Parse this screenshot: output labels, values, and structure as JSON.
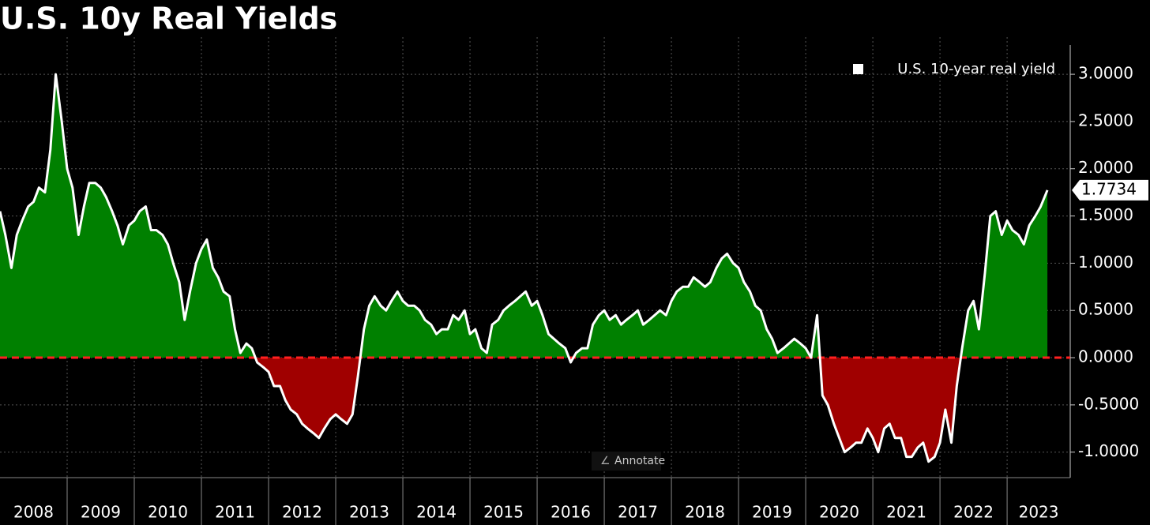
{
  "chart_data": {
    "type": "area-line",
    "title": "U.S. 10y Real Yields",
    "legend": "top-right",
    "grid": true,
    "series": [
      {
        "name": "U.S. 10-year real yield",
        "color": "#ffffff",
        "positive_color": "#008000",
        "negative_color": "#a00000",
        "x": [
          2008,
          2008.08,
          2008.17,
          2008.25,
          2008.33,
          2008.42,
          2008.5,
          2008.58,
          2008.67,
          2008.75,
          2008.83,
          2008.92,
          2009,
          2009.08,
          2009.17,
          2009.25,
          2009.33,
          2009.42,
          2009.5,
          2009.58,
          2009.67,
          2009.75,
          2009.83,
          2009.92,
          2010,
          2010.08,
          2010.17,
          2010.25,
          2010.33,
          2010.42,
          2010.5,
          2010.58,
          2010.67,
          2010.75,
          2010.83,
          2010.92,
          2011,
          2011.08,
          2011.17,
          2011.25,
          2011.33,
          2011.42,
          2011.5,
          2011.58,
          2011.67,
          2011.75,
          2011.83,
          2011.92,
          2012,
          2012.08,
          2012.17,
          2012.25,
          2012.33,
          2012.42,
          2012.5,
          2012.58,
          2012.67,
          2012.75,
          2012.83,
          2012.92,
          2013,
          2013.08,
          2013.17,
          2013.25,
          2013.33,
          2013.42,
          2013.5,
          2013.58,
          2013.67,
          2013.75,
          2013.83,
          2013.92,
          2014,
          2014.08,
          2014.17,
          2014.25,
          2014.33,
          2014.42,
          2014.5,
          2014.58,
          2014.67,
          2014.75,
          2014.83,
          2014.92,
          2015,
          2015.08,
          2015.17,
          2015.25,
          2015.33,
          2015.42,
          2015.5,
          2015.58,
          2015.67,
          2015.75,
          2015.83,
          2015.92,
          2016,
          2016.08,
          2016.17,
          2016.25,
          2016.33,
          2016.42,
          2016.5,
          2016.58,
          2016.67,
          2016.75,
          2016.83,
          2016.92,
          2017,
          2017.08,
          2017.17,
          2017.25,
          2017.33,
          2017.42,
          2017.5,
          2017.58,
          2017.67,
          2017.75,
          2017.83,
          2017.92,
          2018,
          2018.08,
          2018.17,
          2018.25,
          2018.33,
          2018.42,
          2018.5,
          2018.58,
          2018.67,
          2018.75,
          2018.83,
          2018.92,
          2019,
          2019.08,
          2019.17,
          2019.25,
          2019.33,
          2019.42,
          2019.5,
          2019.58,
          2019.67,
          2019.75,
          2019.83,
          2019.92,
          2020,
          2020.08,
          2020.17,
          2020.25,
          2020.33,
          2020.42,
          2020.5,
          2020.58,
          2020.67,
          2020.75,
          2020.83,
          2020.92,
          2021,
          2021.08,
          2021.17,
          2021.25,
          2021.33,
          2021.42,
          2021.5,
          2021.58,
          2021.67,
          2021.75,
          2021.83,
          2021.92,
          2022,
          2022.08,
          2022.17,
          2022.25,
          2022.33,
          2022.42,
          2022.5,
          2022.58,
          2022.67,
          2022.75,
          2022.83,
          2022.92,
          2023,
          2023.08,
          2023.17,
          2023.25,
          2023.33,
          2023.42,
          2023.5,
          2023.6
        ],
        "values": [
          1.55,
          1.3,
          0.95,
          1.3,
          1.45,
          1.6,
          1.65,
          1.8,
          1.75,
          2.2,
          3.0,
          2.5,
          2.0,
          1.8,
          1.3,
          1.6,
          1.85,
          1.85,
          1.8,
          1.7,
          1.55,
          1.4,
          1.2,
          1.4,
          1.45,
          1.55,
          1.6,
          1.35,
          1.35,
          1.3,
          1.2,
          1.0,
          0.8,
          0.4,
          0.7,
          1.0,
          1.15,
          1.25,
          0.95,
          0.85,
          0.7,
          0.65,
          0.3,
          0.05,
          0.15,
          0.1,
          -0.05,
          -0.1,
          -0.15,
          -0.3,
          -0.3,
          -0.45,
          -0.55,
          -0.6,
          -0.7,
          -0.75,
          -0.8,
          -0.85,
          -0.75,
          -0.65,
          -0.6,
          -0.65,
          -0.7,
          -0.6,
          -0.2,
          0.3,
          0.55,
          0.65,
          0.55,
          0.5,
          0.6,
          0.7,
          0.6,
          0.55,
          0.55,
          0.5,
          0.4,
          0.35,
          0.25,
          0.3,
          0.3,
          0.45,
          0.4,
          0.5,
          0.25,
          0.3,
          0.1,
          0.05,
          0.35,
          0.4,
          0.5,
          0.55,
          0.6,
          0.65,
          0.7,
          0.55,
          0.6,
          0.45,
          0.25,
          0.2,
          0.15,
          0.1,
          -0.05,
          0.05,
          0.1,
          0.1,
          0.35,
          0.45,
          0.5,
          0.4,
          0.45,
          0.35,
          0.4,
          0.45,
          0.5,
          0.35,
          0.4,
          0.45,
          0.5,
          0.45,
          0.6,
          0.7,
          0.75,
          0.75,
          0.85,
          0.8,
          0.75,
          0.8,
          0.95,
          1.05,
          1.1,
          1.0,
          0.95,
          0.8,
          0.7,
          0.55,
          0.5,
          0.3,
          0.2,
          0.05,
          0.1,
          0.15,
          0.2,
          0.15,
          0.1,
          0.0,
          0.45,
          -0.4,
          -0.5,
          -0.7,
          -0.85,
          -1.0,
          -0.95,
          -0.9,
          -0.9,
          -0.75,
          -0.85,
          -1.0,
          -0.75,
          -0.7,
          -0.85,
          -0.85,
          -1.05,
          -1.05,
          -0.95,
          -0.9,
          -1.1,
          -1.05,
          -0.9,
          -0.55,
          -0.9,
          -0.3,
          0.1,
          0.5,
          0.6,
          0.3,
          0.9,
          1.5,
          1.55,
          1.3,
          1.45,
          1.35,
          1.3,
          1.2,
          1.4,
          1.5,
          1.6,
          1.7734
        ]
      }
    ],
    "reference_line": {
      "value": 0,
      "color": "#ff2020"
    },
    "xlim": [
      2008,
      2023.94
    ],
    "xticks": [
      2008,
      2009,
      2010,
      2011,
      2012,
      2013,
      2014,
      2015,
      2016,
      2017,
      2018,
      2019,
      2020,
      2021,
      2022,
      2023
    ],
    "ylim": [
      -1.27,
      3.31
    ],
    "yticks": [
      {
        "value": 3,
        "label": "3.0000"
      },
      {
        "value": 2.5,
        "label": "2.5000"
      },
      {
        "value": 2,
        "label": "2.0000"
      },
      {
        "value": 1.5,
        "label": "1.5000"
      },
      {
        "value": 1,
        "label": "1.0000"
      },
      {
        "value": 0.5,
        "label": "0.5000"
      },
      {
        "value": 0,
        "label": "0.0000"
      },
      {
        "value": -0.5,
        "label": "-0.5000"
      },
      {
        "value": -1,
        "label": "-1.0000"
      }
    ]
  },
  "toolbar": {
    "annotate": "Annotate"
  }
}
